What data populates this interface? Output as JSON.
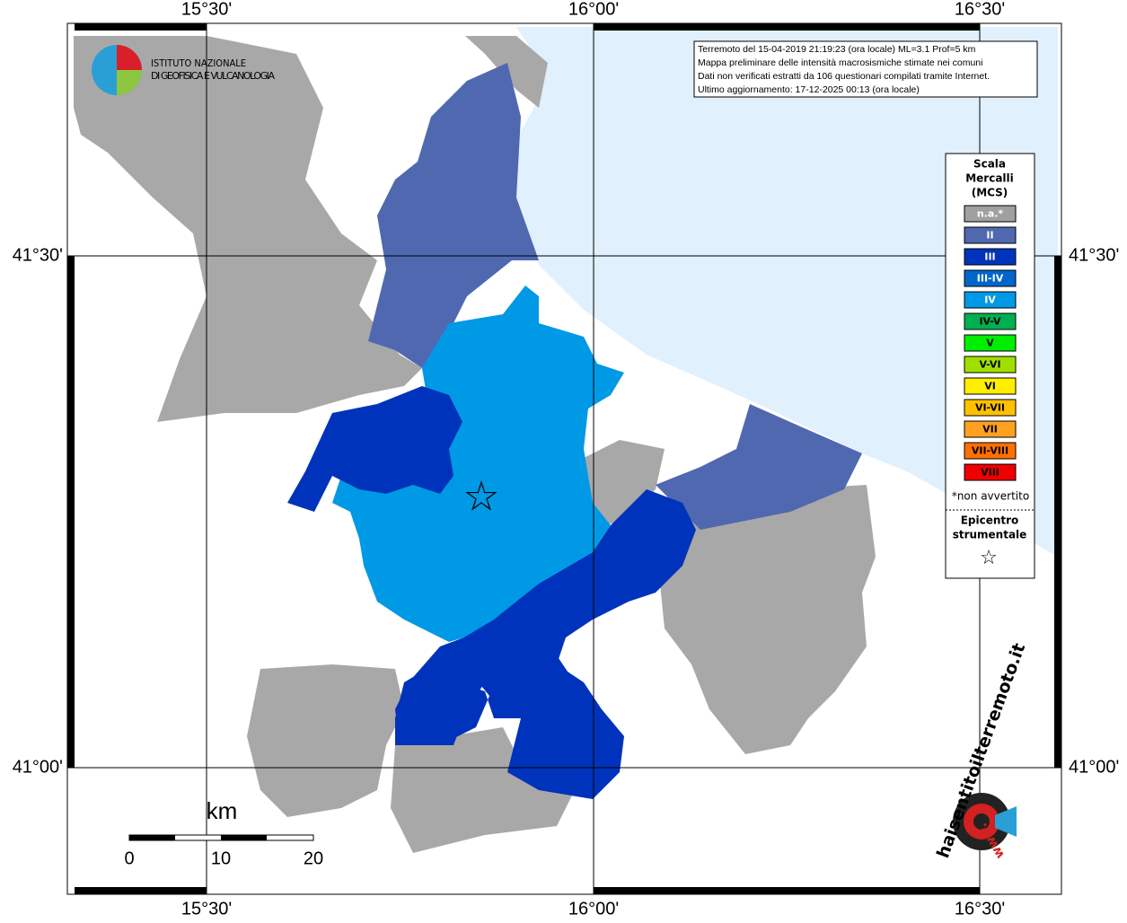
{
  "axes": {
    "top": [
      "15°30'",
      "16°00'",
      "16°30'"
    ],
    "bottom": [
      "15°30'",
      "16°00'",
      "16°30'"
    ],
    "left": [
      "41°30'",
      "41°00'"
    ],
    "right": [
      "41°30'",
      "41°00'"
    ]
  },
  "logo": {
    "line1": "ISTITUTO NAZIONALE",
    "line2": "DI GEOFISICA E VULCANOLOGIA"
  },
  "info": [
    "Terremoto del 15-04-2019 21:19:23 (ora locale) ML=3.1 Prof=5 km",
    "Mappa preliminare delle intensità macrosismiche stimate nei comuni",
    "Dati non verificati estratti da 106 questionari compilati tramite Internet.",
    "Ultimo aggiornamento: 17-12-2025 00:13 (ora locale)"
  ],
  "legend": {
    "title": [
      "Scala",
      "Mercalli",
      "(MCS)"
    ],
    "items": [
      {
        "label": "n.a.*",
        "color": "#a0a0a0"
      },
      {
        "label": "II",
        "color": "#5068b0"
      },
      {
        "label": "III",
        "color": "#0033bb"
      },
      {
        "label": "III-IV",
        "color": "#0066cc"
      },
      {
        "label": "IV",
        "color": "#0099e6"
      },
      {
        "label": "IV-V",
        "color": "#00b050"
      },
      {
        "label": "V",
        "color": "#00ee00"
      },
      {
        "label": "V-VI",
        "color": "#a0e000"
      },
      {
        "label": "VI",
        "color": "#ffee00"
      },
      {
        "label": "VI-VII",
        "color": "#ffc000"
      },
      {
        "label": "VII",
        "color": "#ffa020"
      },
      {
        "label": "VII-VIII",
        "color": "#ff7000"
      },
      {
        "label": "VIII",
        "color": "#ee0000"
      }
    ],
    "note": "*non avvertito",
    "epicentre": [
      "Epicentro",
      "strumentale"
    ],
    "star": "☆"
  },
  "scale": {
    "unit": "km",
    "ticks": [
      "0",
      "10",
      "20"
    ]
  },
  "watermark": {
    "site": "haisentitoilterremoto.it",
    "www": "www."
  }
}
